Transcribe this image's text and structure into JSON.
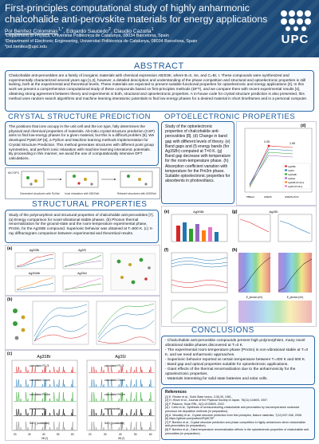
{
  "header": {
    "title": "First-principles computational study of highly anharmonic chalcohalide anti-perovskite materials for energy applications",
    "authors": [
      {
        "name": "Pol Benítez Colominas",
        "sup": "1,*"
      },
      {
        "name": "Edgardo Saucedo",
        "sup": "2"
      },
      {
        "name": "Claudio Cazorla",
        "sup": "1"
      }
    ],
    "affiliations": [
      "¹Department of Physics, Universitat Politècnica de Catalunya, 08034 Barcelona, Spain",
      "²Department of Electronic Engineering, Universitat Politècnica de Catalunya, 08034 Barcelona, Spain",
      "*pol.benitez@upc.edu"
    ],
    "logo_text": "UPC"
  },
  "abstract": {
    "heading": "ABSTRACT",
    "text": "Chalcohalide anti-perovskites are a family of inorganic materials with chemical expression AB3CBr, where B=S, Se, and C=Br, I. These compounds were synthesized and experimentally characterized several years ago [1,2], however, a detailed description and understanding of the phase competition and structural and optoelectronic properties is still lacking, both at the experimental and theoretical levels. These materials are expected to present suitable functional properties for optoelectronic and energy applications [3]. In this work we present a comprehensive computational study of these compounds based on first-principles methods (DFT), and we compare them with recent experimental results [4], obtaining strong agreement between theory and experiments in both, structural and optoelectronic properties. A in-house code for crystal structure prediction is also presented, this method uses random search algorithms and machine learning interatomic potentials to find low energy phases for a desired material in short timeframes and in a personal computer."
  },
  "csp": {
    "heading": "CRYSTAL STRUCTURE PREDICTION",
    "text": "The positions that ions occupy in the unit cell and the ion type, fully determines the physical and chemical properties of materials. Ab-initio crystal structure prediction (CSP) aims to find low-energy phases for a given material, but this is a difficult problem [5]. We developed PyMCSP [6], a Python and Machine learning methods implementation for Crystal Structure Prediction. This method generates structures with different point group symmetries, and perform ionic relaxation with machine learning interatomic potentials. By proceeding in this manner, we avoid the use of computationally intensive DFT calculations.",
    "diagram_labels": [
      "Generated structures with PyXtal",
      "Ionic relaxation with M3GNet",
      "Relaxed structures with M3GNet"
    ],
    "diagram_title": "MCSP3"
  },
  "opto": {
    "heading": "OPTOELECTRONIC PROPERTIES",
    "text": "Study of the optoelectronic properties of chalcohalide anti-perovskites [8]. (d) Change in band gap with different levels of theory. (e) Band gaps and (f) energy bands (for Ag3SBr) computed at T=0 K. (g) Band gap decrease with temperature for the room-temperature phase. (h) Absorption coefficient variation with temperature for the Pm3m phase. Suitable optoelectronic properties for absorbents in photovoltaics.",
    "panel_labels": [
      "(d)",
      "(e)",
      "(f)",
      "(g)",
      "(h)"
    ],
    "panel_titles": [
      "Ag3SBr",
      "Ag3SI"
    ],
    "d_values": [
      [
        "PBEsol",
        "1.0"
      ],
      [
        "HSE06",
        "2.05"
      ],
      [
        "HSE06+SOC",
        "1.95"
      ]
    ],
    "d_annotations": [
      "2.05",
      "1.95"
    ],
    "d_legend": [
      "Ag3SBr",
      "Ag3SI",
      "Ag3SeBr",
      "Ag3SeI",
      "Ag3SBr (Pm3m)",
      "Ag3SI (Pm3m)"
    ],
    "h_axis": "E_photon (eV)"
  },
  "structural": {
    "heading": "STRUCTURAL PROPERTIES",
    "text": "Study of the polymorphism and structural properties of chalcohalide anti-perovskites [7]. (a) Energy comparison for novel vibrational stable phases. (b) Phonon thermal renormalization for the ground-state and the room-temperature experimental phase, Pm3m, for the Ag3SBr compound. Superionic behavior was obtained at T=600 K. (c) X-ray diffractogram comparison between experimental and theoretical results.",
    "panel_labels": [
      "(a)",
      "(b)",
      "(c)"
    ],
    "subplot_titles": [
      "Ag3SBr",
      "Ag3SI",
      "Ag3SeBr",
      "Ag3SeI"
    ],
    "xrd": {
      "titles": [
        "Ag3SBr",
        "Ag3SI"
      ],
      "xlabel": "2θ (º)",
      "left_labels": [
        "calculated P2₁/3",
        "calculated Cmcm",
        "calculated Pm3m",
        "experimental",
        "SnO₂ (substrate)"
      ],
      "right_labels": [
        "calculated P2₁/3",
        "calculated Cmcm",
        "calculated Pm3m",
        "experimental",
        "SnO₂ (substrate)"
      ],
      "ticks": [
        "20",
        "30",
        "40",
        "50",
        "60"
      ]
    }
  },
  "conclusions": {
    "heading": "CONCLUSIONS",
    "items": [
      "- Chalcohalide anti-perovskite compounds present high polymorphism, many novel vibrational stable phases discovered at T=0 K.",
      "- The experimental room-temperature phase (Pm3m) is non-vibrational stable at T=0 K, and we need anharmonic approaches.",
      "- Superionic behavior reported at certain temperature between T=400 K and 600 K.",
      "- Band gap and optical properties suitable for optoelectronic applications.",
      "- Giant effects of the thermal renormalization due to the anharmonicity for the optoelectronic properties.",
      "- Materials interesting for solid state batteries and solar cells."
    ]
  },
  "references": {
    "heading": "References",
    "items": [
      "[1] E. Reuter et al., Solid State Ionics, 3:35-39, 1981.",
      "[2] H. Hinze et al., Journal of the Physical Society of Japan, 78(11):114603, 2007.",
      "[3] F. Palazon, Solar RRL, 6(2):2100829, 2022.",
      "[4] I. Caño et al., Synthesis of semiconducting chalcohalide anti-perovskites by low-temperature molecular precursor ink deposition methods (in preparation).",
      "[5] A. Woodley et al., Crystal structure prediction from first principles, Nature materials, 7(12):937-946, 2008.",
      "[6] https://github.com/polbeni/PyMCSP",
      "[7] P. Benítez et al., Crystal structure prediction and phase competition in highly anharmonic silver chalcohalide anti-perovskites (in preparation).",
      "[8] P. Benítez et al., Giant temperature renormalization effects in the optoelectronic properties of chalcohalide anti-perovskites (in preparation)."
    ]
  },
  "colors": {
    "header_bg": "#1d4b79",
    "heading": "#1d5a9a",
    "series": [
      "#d62728",
      "#1f77b4",
      "#2ca02c",
      "#9467bd",
      "#ff7f0e",
      "#e377c2"
    ]
  }
}
